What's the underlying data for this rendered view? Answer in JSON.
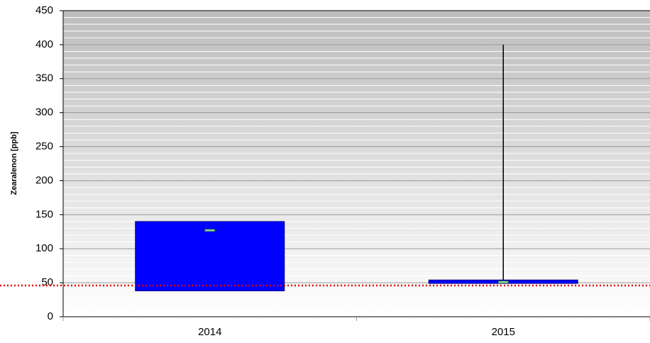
{
  "chart_data": {
    "type": "box",
    "y_label": "Zearalenon [ppb]",
    "categories": [
      "2014",
      "2015"
    ],
    "box_low": [
      38,
      49
    ],
    "box_high": [
      140,
      54
    ],
    "marker": [
      127,
      51
    ],
    "whisker_max": [
      null,
      400
    ],
    "box_color": "#0000ff",
    "marker_color": "#8fe0a0",
    "reference_line": 46,
    "reference_color": "#e00000",
    "ylim": [
      0,
      450
    ],
    "yticks": [
      0,
      50,
      100,
      150,
      200,
      250,
      300,
      350,
      400,
      450
    ],
    "minor_yticks": [
      10,
      20,
      30,
      40,
      60,
      70,
      80,
      90,
      110,
      120,
      130,
      140,
      160,
      170,
      180,
      190,
      210,
      220,
      230,
      240,
      260,
      270,
      280,
      290,
      310,
      320,
      330,
      340,
      360,
      370,
      380,
      390,
      410,
      420,
      430,
      440
    ],
    "grid": true
  }
}
